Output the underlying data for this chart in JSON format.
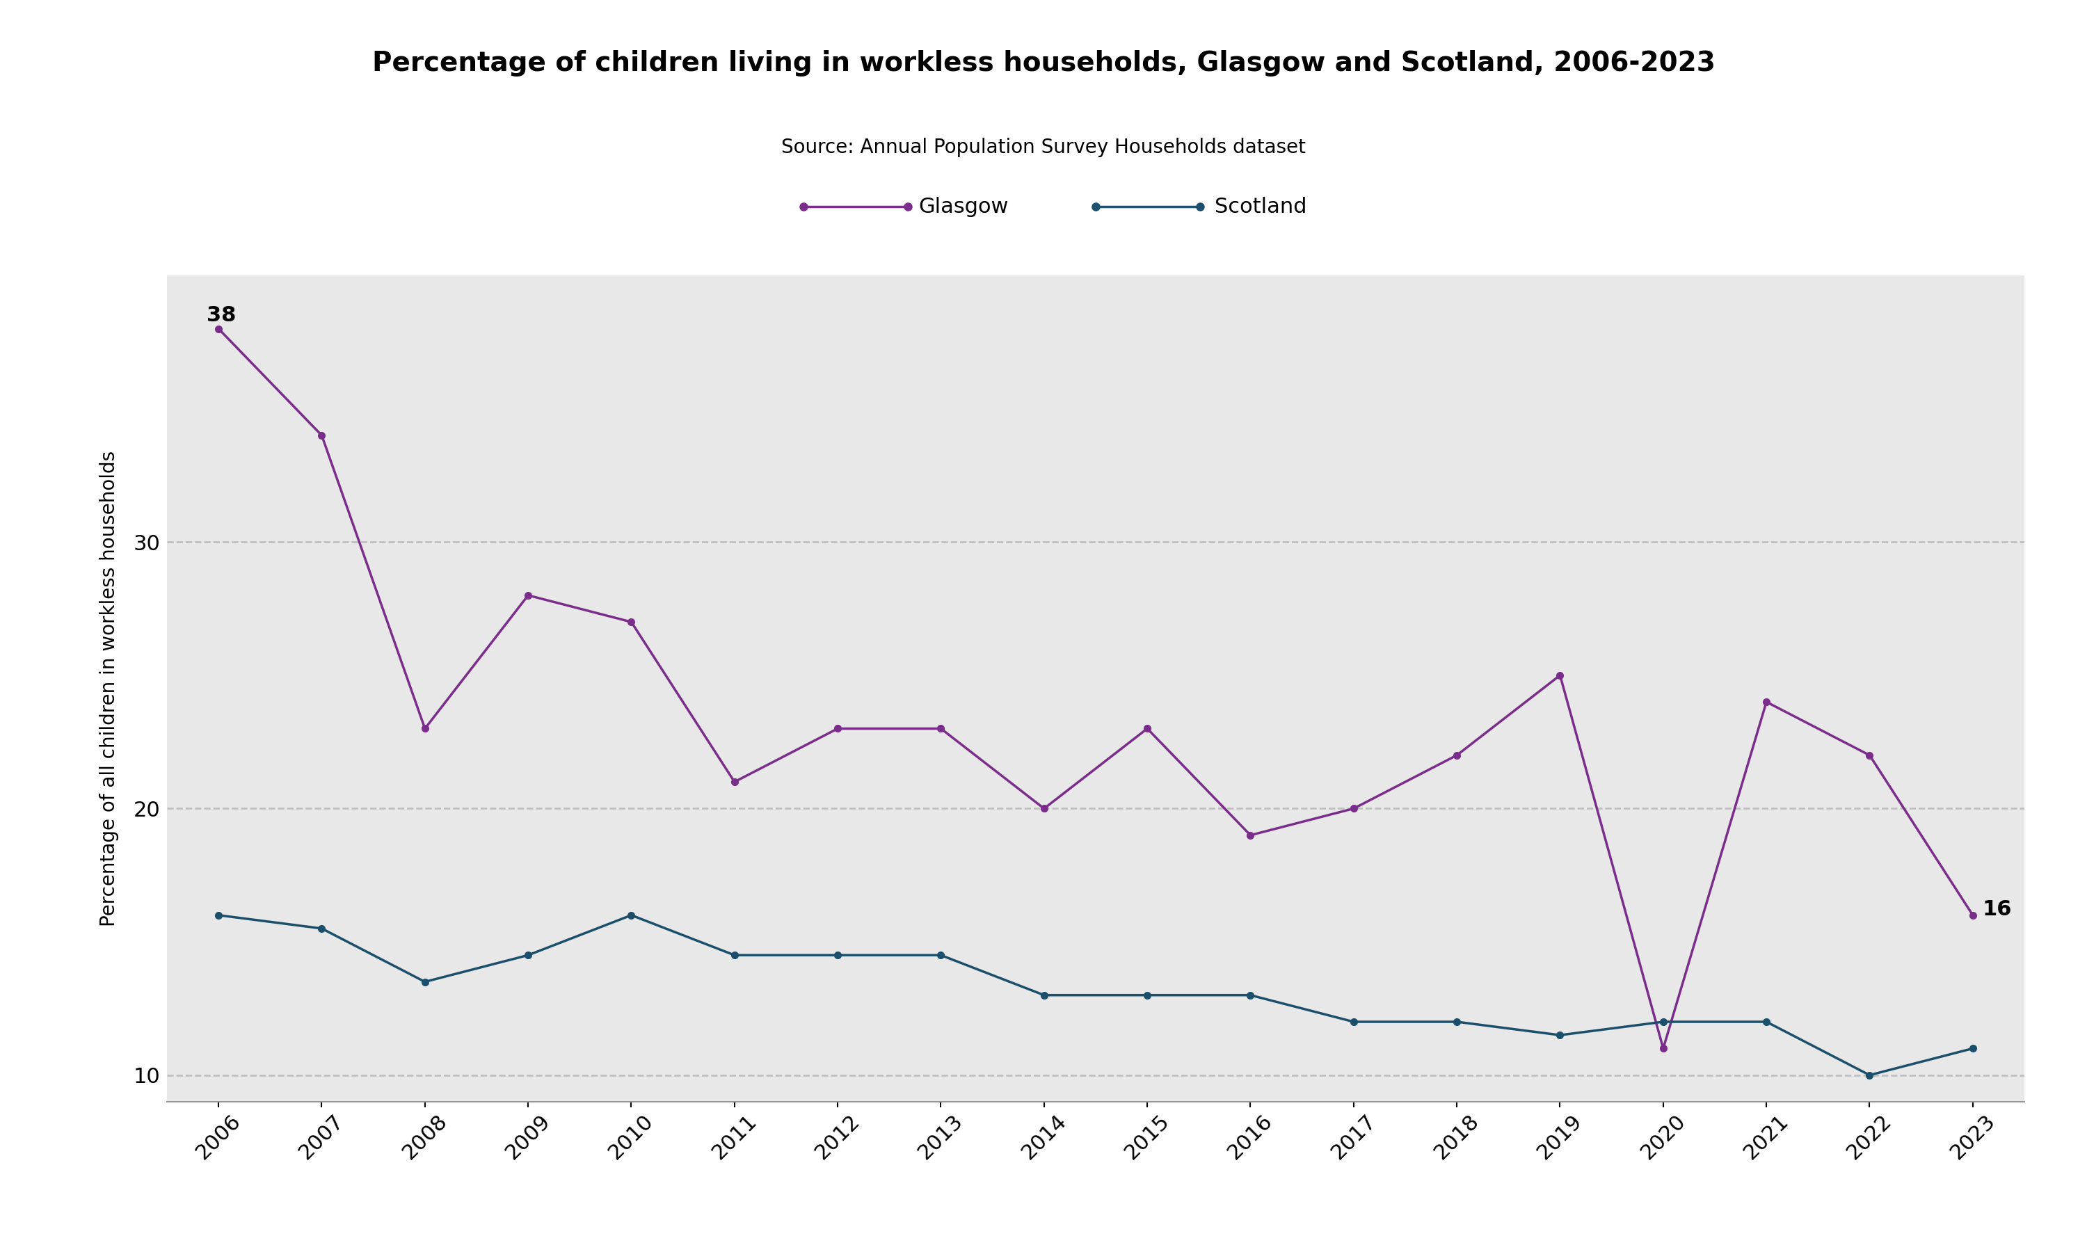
{
  "title": "Percentage of children living in workless households, Glasgow and Scotland, 2006-2023",
  "subtitle": "Source: Annual Population Survey Households dataset",
  "ylabel": "Percentage of all children in workless households",
  "years": [
    2006,
    2007,
    2008,
    2009,
    2010,
    2011,
    2012,
    2013,
    2014,
    2015,
    2016,
    2017,
    2018,
    2019,
    2020,
    2021,
    2022,
    2023
  ],
  "glasgow": [
    38,
    34,
    23,
    28,
    27,
    21,
    23,
    23,
    20,
    23,
    19,
    20,
    22,
    25,
    11,
    24,
    22,
    16
  ],
  "scotland": [
    16,
    15.5,
    13.5,
    14.5,
    16,
    14.5,
    14.5,
    14.5,
    13,
    13,
    13,
    12,
    12,
    11.5,
    12,
    12,
    10,
    11
  ],
  "glasgow_color": "#7B2D8B",
  "scotland_color": "#1B4F6B",
  "background_color": "#E8E8E8",
  "outer_background": "#FFFFFF",
  "ylim_min": 9,
  "ylim_max": 40,
  "yticks": [
    10,
    20,
    30
  ],
  "annotation_2006": "38",
  "annotation_2023": "16",
  "legend_glasgow": "Glasgow",
  "legend_scotland": "Scotland"
}
